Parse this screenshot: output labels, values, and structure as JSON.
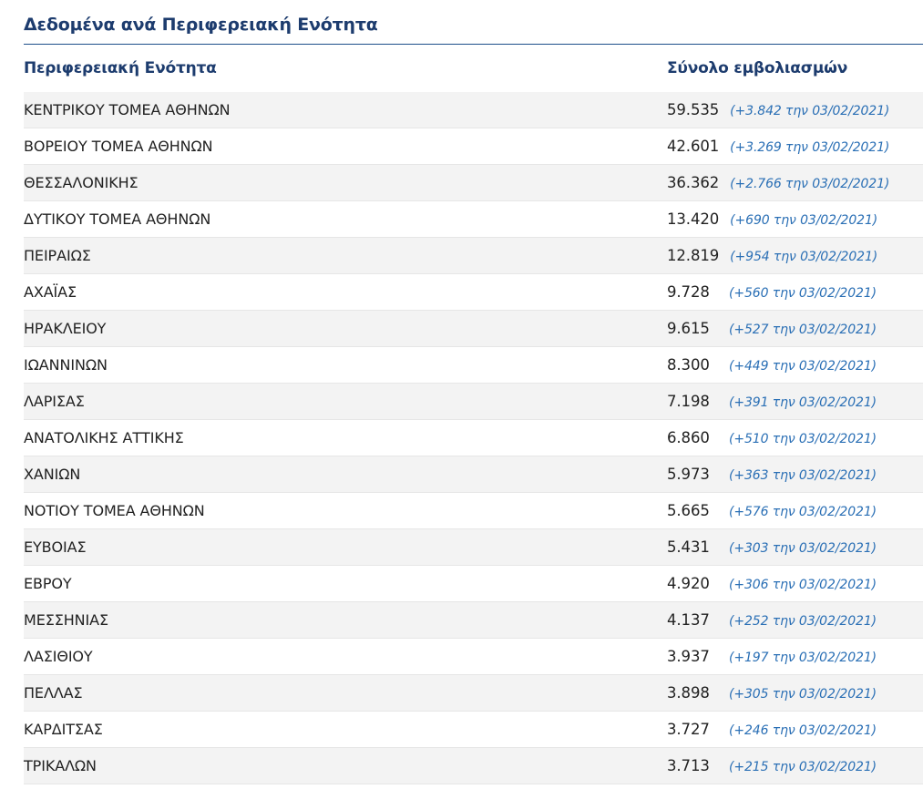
{
  "section": {
    "title": "Δεδομένα ανά Περιφερειακή Ενότητα"
  },
  "table": {
    "columns": {
      "name": "Περιφερειακή Ενότητα",
      "total": "Σύνολο εμβολιασμών"
    },
    "rows": [
      {
        "name": "ΚΕΝΤΡΙΚΟΥ ΤΟΜΕΑ ΑΘΗΝΩΝ",
        "total": "59.535",
        "delta": "(+3.842 την 03/02/2021)"
      },
      {
        "name": "ΒΟΡΕΙΟΥ ΤΟΜΕΑ ΑΘΗΝΩΝ",
        "total": "42.601",
        "delta": "(+3.269 την 03/02/2021)"
      },
      {
        "name": "ΘΕΣΣΑΛΟΝΙΚΗΣ",
        "total": "36.362",
        "delta": "(+2.766 την 03/02/2021)"
      },
      {
        "name": "ΔΥΤΙΚΟΥ ΤΟΜΕΑ ΑΘΗΝΩΝ",
        "total": "13.420",
        "delta": "(+690 την 03/02/2021)"
      },
      {
        "name": "ΠΕΙΡΑΙΩΣ",
        "total": "12.819",
        "delta": "(+954 την 03/02/2021)"
      },
      {
        "name": "ΑΧΑΪΑΣ",
        "total": "9.728",
        "delta": "(+560 την 03/02/2021)"
      },
      {
        "name": "ΗΡΑΚΛΕΙΟΥ",
        "total": "9.615",
        "delta": "(+527 την 03/02/2021)"
      },
      {
        "name": "ΙΩΑΝΝΙΝΩΝ",
        "total": "8.300",
        "delta": "(+449 την 03/02/2021)"
      },
      {
        "name": "ΛΑΡΙΣΑΣ",
        "total": "7.198",
        "delta": "(+391 την 03/02/2021)"
      },
      {
        "name": "ΑΝΑΤΟΛΙΚΗΣ ΑΤΤΙΚΗΣ",
        "total": "6.860",
        "delta": "(+510 την 03/02/2021)"
      },
      {
        "name": "ΧΑΝΙΩΝ",
        "total": "5.973",
        "delta": "(+363 την 03/02/2021)"
      },
      {
        "name": "ΝΟΤΙΟΥ ΤΟΜΕΑ ΑΘΗΝΩΝ",
        "total": "5.665",
        "delta": "(+576 την 03/02/2021)"
      },
      {
        "name": "ΕΥΒΟΙΑΣ",
        "total": "5.431",
        "delta": "(+303 την 03/02/2021)"
      },
      {
        "name": "ΕΒΡΟΥ",
        "total": "4.920",
        "delta": "(+306 την 03/02/2021)"
      },
      {
        "name": "ΜΕΣΣΗΝΙΑΣ",
        "total": "4.137",
        "delta": "(+252 την 03/02/2021)"
      },
      {
        "name": "ΛΑΣΙΘΙΟΥ",
        "total": "3.937",
        "delta": "(+197 την 03/02/2021)"
      },
      {
        "name": "ΠΕΛΛΑΣ",
        "total": "3.898",
        "delta": "(+305 την 03/02/2021)"
      },
      {
        "name": "ΚΑΡΔΙΤΣΑΣ",
        "total": "3.727",
        "delta": "(+246 την 03/02/2021)"
      },
      {
        "name": "ΤΡΙΚΑΛΩΝ",
        "total": "3.713",
        "delta": "(+215 την 03/02/2021)"
      }
    ]
  }
}
